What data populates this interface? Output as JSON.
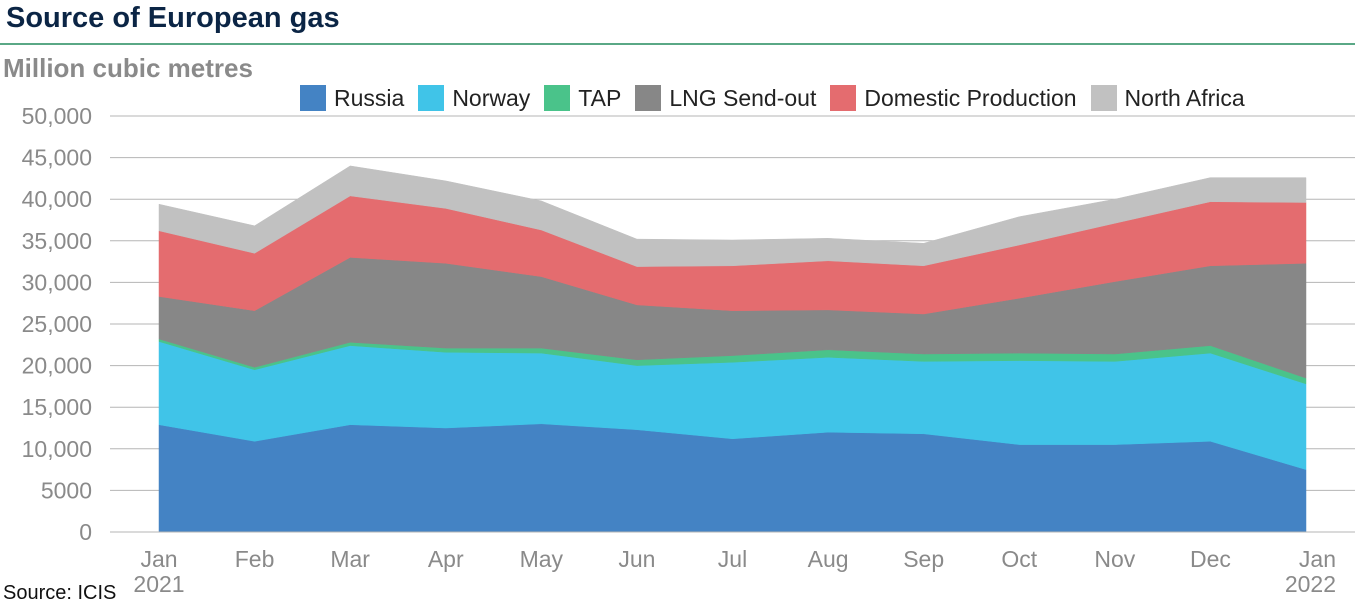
{
  "title": "Source of European gas",
  "subtitle": "Million cubic metres",
  "source": "Source: ICIS",
  "colors": {
    "title": "#0b2545",
    "rule": "#5aa886",
    "grid": "#b5b5b5",
    "axis_text": "#8a8a8a"
  },
  "chart_data": {
    "type": "area",
    "stacked": true,
    "categories": [
      "Jan 2021",
      "Feb",
      "Mar",
      "Apr",
      "May",
      "Jun",
      "Jul",
      "Aug",
      "Sep",
      "Oct",
      "Nov",
      "Dec",
      "Jan 2022"
    ],
    "x_tick_labels": [
      [
        "Jan",
        "2021"
      ],
      [
        "Feb"
      ],
      [
        "Mar"
      ],
      [
        "Apr"
      ],
      [
        "May"
      ],
      [
        "Jun"
      ],
      [
        "Jul"
      ],
      [
        "Aug"
      ],
      [
        "Sep"
      ],
      [
        "Oct"
      ],
      [
        "Nov"
      ],
      [
        "Dec"
      ],
      [
        "Jan",
        "2022"
      ]
    ],
    "ylim": [
      0,
      50000
    ],
    "y_ticks": [
      0,
      5000,
      10000,
      15000,
      20000,
      25000,
      30000,
      35000,
      40000,
      45000,
      50000
    ],
    "y_tick_labels": [
      "0",
      "5000",
      "10,000",
      "15,000",
      "20,000",
      "25,000",
      "30,000",
      "35,000",
      "40,000",
      "45,000",
      "50,000"
    ],
    "grid": "horizontal",
    "legend_position": "top",
    "series": [
      {
        "name": "Russia",
        "color": "#4483c4",
        "values": [
          12900,
          10900,
          12900,
          12500,
          13000,
          12300,
          11200,
          12000,
          11800,
          10500,
          10500,
          10900,
          7500
        ]
      },
      {
        "name": "Norway",
        "color": "#40c4e8",
        "values": [
          10000,
          8600,
          9500,
          9100,
          8500,
          7700,
          9200,
          9000,
          8700,
          10100,
          10000,
          10600,
          10300
        ]
      },
      {
        "name": "TAP",
        "color": "#4ac38a",
        "values": [
          300,
          300,
          400,
          500,
          600,
          700,
          800,
          900,
          900,
          900,
          900,
          900,
          700
        ]
      },
      {
        "name": "LNG Send-out",
        "color": "#878787",
        "values": [
          5100,
          6800,
          10200,
          10200,
          8600,
          6600,
          5400,
          4800,
          4800,
          6600,
          8700,
          9600,
          13800
        ]
      },
      {
        "name": "Domestic Production",
        "color": "#e46c6f",
        "values": [
          7900,
          6900,
          7400,
          6600,
          5600,
          4600,
          5400,
          5900,
          5800,
          6400,
          7000,
          7700,
          7300
        ]
      },
      {
        "name": "North Africa",
        "color": "#c1c1c1",
        "values": [
          3200,
          3300,
          3600,
          3300,
          3500,
          3300,
          3100,
          2700,
          2700,
          3400,
          2900,
          2900,
          3000
        ]
      }
    ]
  }
}
